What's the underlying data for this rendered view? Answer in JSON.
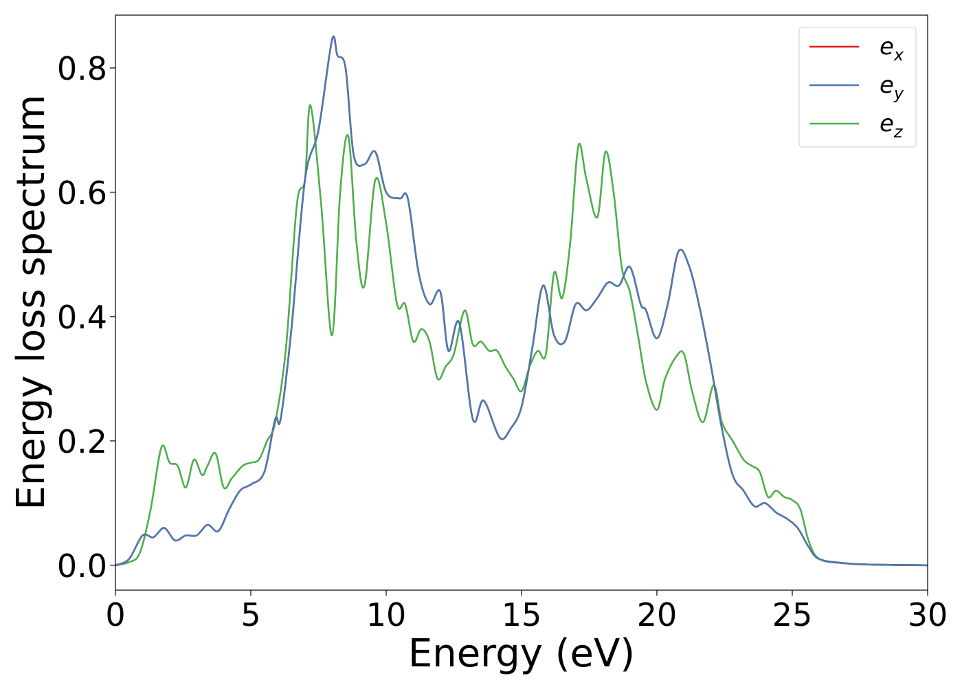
{
  "chart_data": {
    "type": "line",
    "title": "",
    "xlabel": "Energy (eV)",
    "ylabel": "Energy loss spectrum",
    "xlim": [
      0,
      30
    ],
    "ylim": [
      -0.04,
      0.885
    ],
    "xticks": [
      0,
      5,
      10,
      15,
      20,
      25,
      30
    ],
    "xtick_labels": [
      "0",
      "5",
      "10",
      "15",
      "20",
      "25",
      "30"
    ],
    "yticks": [
      0.0,
      0.2,
      0.4,
      0.6,
      0.8
    ],
    "ytick_labels": [
      "0.0",
      "0.2",
      "0.4",
      "0.6",
      "0.8"
    ],
    "grid": false,
    "legend_position": "top-right",
    "colors": {
      "ex": "#e41a1c",
      "ey": "#4a7ab0",
      "ez": "#4daf4a"
    },
    "series": [
      {
        "name": "ex",
        "legend_base": "e",
        "legend_sub": "x",
        "color": "#e41a1c",
        "x": [
          0.0,
          0.5,
          1.0,
          1.4,
          1.8,
          2.2,
          2.6,
          3.0,
          3.4,
          3.8,
          4.2,
          4.6,
          5.0,
          5.5,
          5.9,
          6.1,
          6.5,
          7.0,
          7.5,
          8.0,
          8.2,
          8.5,
          8.8,
          9.2,
          9.6,
          10.0,
          10.5,
          10.8,
          11.2,
          11.6,
          12.0,
          12.3,
          12.7,
          13.2,
          13.6,
          14.2,
          14.6,
          15.0,
          15.4,
          15.8,
          16.2,
          16.6,
          17.0,
          17.4,
          17.8,
          18.2,
          18.6,
          19.0,
          19.4,
          19.6,
          20.0,
          20.4,
          20.8,
          21.2,
          21.6,
          22.0,
          22.4,
          22.8,
          23.2,
          23.6,
          24.0,
          24.4,
          24.8,
          25.2,
          25.6,
          26.0,
          27.0,
          28.0,
          30.0
        ],
        "values": [
          0.0,
          0.01,
          0.048,
          0.045,
          0.06,
          0.04,
          0.048,
          0.048,
          0.065,
          0.055,
          0.09,
          0.12,
          0.13,
          0.15,
          0.235,
          0.235,
          0.38,
          0.62,
          0.7,
          0.845,
          0.82,
          0.8,
          0.66,
          0.645,
          0.665,
          0.6,
          0.59,
          0.59,
          0.47,
          0.42,
          0.44,
          0.345,
          0.39,
          0.235,
          0.265,
          0.205,
          0.22,
          0.255,
          0.35,
          0.45,
          0.37,
          0.36,
          0.42,
          0.41,
          0.43,
          0.455,
          0.45,
          0.48,
          0.42,
          0.41,
          0.365,
          0.42,
          0.505,
          0.48,
          0.41,
          0.32,
          0.22,
          0.145,
          0.12,
          0.095,
          0.1,
          0.085,
          0.075,
          0.06,
          0.03,
          0.01,
          0.003,
          0.001,
          0.0
        ]
      },
      {
        "name": "ey",
        "legend_base": "e",
        "legend_sub": "y",
        "color": "#4a7ab0",
        "x": [
          0.0,
          0.5,
          1.0,
          1.4,
          1.8,
          2.2,
          2.6,
          3.0,
          3.4,
          3.8,
          4.2,
          4.6,
          5.0,
          5.5,
          5.9,
          6.1,
          6.5,
          7.0,
          7.5,
          8.0,
          8.2,
          8.5,
          8.8,
          9.2,
          9.6,
          10.0,
          10.5,
          10.8,
          11.2,
          11.6,
          12.0,
          12.3,
          12.7,
          13.2,
          13.6,
          14.2,
          14.6,
          15.0,
          15.4,
          15.8,
          16.2,
          16.6,
          17.0,
          17.4,
          17.8,
          18.2,
          18.6,
          19.0,
          19.4,
          19.6,
          20.0,
          20.4,
          20.8,
          21.2,
          21.6,
          22.0,
          22.4,
          22.8,
          23.2,
          23.6,
          24.0,
          24.4,
          24.8,
          25.2,
          25.6,
          26.0,
          27.0,
          28.0,
          30.0
        ],
        "values": [
          0.0,
          0.01,
          0.048,
          0.045,
          0.06,
          0.04,
          0.048,
          0.048,
          0.065,
          0.055,
          0.09,
          0.12,
          0.13,
          0.15,
          0.235,
          0.235,
          0.38,
          0.62,
          0.7,
          0.845,
          0.82,
          0.8,
          0.66,
          0.645,
          0.665,
          0.6,
          0.59,
          0.59,
          0.47,
          0.42,
          0.44,
          0.345,
          0.39,
          0.235,
          0.265,
          0.205,
          0.22,
          0.255,
          0.35,
          0.45,
          0.37,
          0.36,
          0.42,
          0.41,
          0.43,
          0.455,
          0.45,
          0.48,
          0.42,
          0.41,
          0.365,
          0.42,
          0.505,
          0.48,
          0.41,
          0.32,
          0.22,
          0.145,
          0.12,
          0.095,
          0.1,
          0.085,
          0.075,
          0.06,
          0.03,
          0.01,
          0.003,
          0.001,
          0.0
        ]
      },
      {
        "name": "ez",
        "legend_base": "e",
        "legend_sub": "z",
        "color": "#4daf4a",
        "x": [
          0.0,
          0.5,
          0.9,
          1.3,
          1.7,
          2.0,
          2.3,
          2.6,
          2.9,
          3.2,
          3.4,
          3.7,
          4.0,
          4.3,
          4.7,
          5.0,
          5.3,
          5.6,
          5.9,
          6.3,
          6.7,
          7.0,
          7.2,
          7.6,
          8.0,
          8.3,
          8.6,
          8.9,
          9.2,
          9.6,
          10.0,
          10.4,
          10.7,
          11.0,
          11.3,
          11.6,
          11.9,
          12.2,
          12.5,
          12.9,
          13.2,
          13.5,
          13.8,
          14.1,
          14.4,
          14.7,
          15.0,
          15.3,
          15.6,
          15.9,
          16.2,
          16.5,
          16.8,
          17.1,
          17.4,
          17.8,
          18.1,
          18.4,
          18.7,
          19.0,
          19.3,
          19.6,
          20.0,
          20.3,
          20.7,
          21.0,
          21.3,
          21.7,
          22.1,
          22.4,
          22.8,
          23.2,
          23.5,
          23.8,
          24.1,
          24.4,
          24.7,
          25.0,
          25.3,
          25.6,
          26.0,
          27.0,
          28.0,
          30.0
        ],
        "values": [
          0.0,
          0.005,
          0.02,
          0.09,
          0.19,
          0.165,
          0.16,
          0.125,
          0.17,
          0.145,
          0.16,
          0.18,
          0.125,
          0.14,
          0.16,
          0.165,
          0.17,
          0.2,
          0.23,
          0.35,
          0.58,
          0.62,
          0.74,
          0.58,
          0.37,
          0.6,
          0.69,
          0.52,
          0.45,
          0.62,
          0.55,
          0.42,
          0.42,
          0.36,
          0.38,
          0.36,
          0.3,
          0.32,
          0.34,
          0.41,
          0.355,
          0.36,
          0.345,
          0.345,
          0.32,
          0.3,
          0.28,
          0.32,
          0.345,
          0.34,
          0.47,
          0.43,
          0.52,
          0.675,
          0.62,
          0.56,
          0.665,
          0.6,
          0.48,
          0.44,
          0.37,
          0.295,
          0.25,
          0.3,
          0.335,
          0.34,
          0.28,
          0.23,
          0.29,
          0.23,
          0.2,
          0.17,
          0.16,
          0.15,
          0.11,
          0.12,
          0.11,
          0.105,
          0.09,
          0.04,
          0.01,
          0.003,
          0.001,
          0.0
        ]
      }
    ]
  }
}
